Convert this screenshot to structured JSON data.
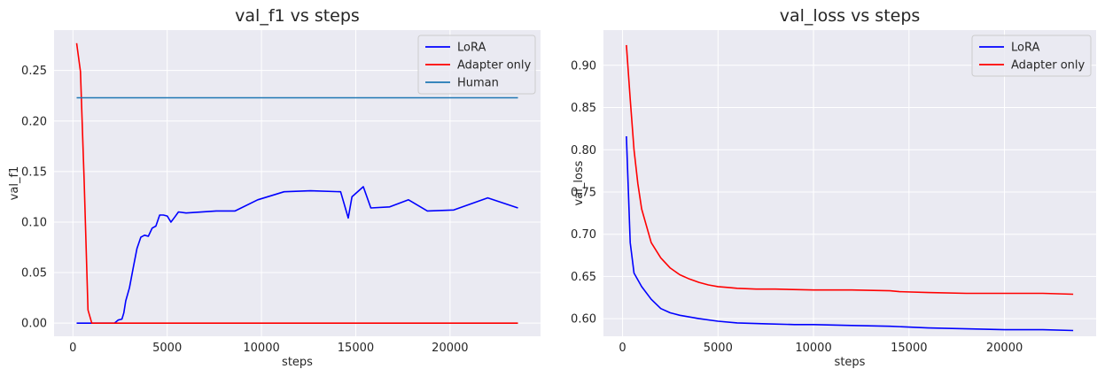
{
  "chart_data": [
    {
      "type": "line",
      "title": "val_f1 vs steps",
      "xlabel": "steps",
      "ylabel": "val_f1",
      "xlim": [
        -1000,
        24800
      ],
      "ylim": [
        -0.013,
        0.29
      ],
      "xticks": [
        0,
        5000,
        10000,
        15000,
        20000
      ],
      "yticks": [
        0.0,
        0.05,
        0.1,
        0.15,
        0.2,
        0.25
      ],
      "ytick_labels": [
        "0.00",
        "0.05",
        "0.10",
        "0.15",
        "0.20",
        "0.25"
      ],
      "grid": true,
      "legend_position": "top-right",
      "series": [
        {
          "name": "LoRA",
          "color": "#0000ff",
          "x": [
            200,
            2200,
            2400,
            2600,
            2700,
            2800,
            3000,
            3200,
            3400,
            3600,
            3800,
            4000,
            4200,
            4400,
            4600,
            4800,
            5000,
            5200,
            5400,
            5600,
            6000,
            7600,
            8600,
            9800,
            11200,
            12600,
            14200,
            14600,
            14800,
            15400,
            15800,
            16800,
            17800,
            18800,
            20200,
            22000,
            23600
          ],
          "y": [
            0.0,
            0.0,
            0.003,
            0.004,
            0.01,
            0.022,
            0.035,
            0.055,
            0.074,
            0.085,
            0.087,
            0.086,
            0.094,
            0.096,
            0.107,
            0.107,
            0.106,
            0.1,
            0.105,
            0.11,
            0.109,
            0.111,
            0.111,
            0.122,
            0.13,
            0.131,
            0.13,
            0.104,
            0.125,
            0.135,
            0.114,
            0.115,
            0.122,
            0.111,
            0.112,
            0.124,
            0.114
          ]
        },
        {
          "name": "Adapter only",
          "color": "#ff0000",
          "x": [
            200,
            400,
            600,
            800,
            1000,
            2000,
            5000,
            10000,
            15000,
            20000,
            23600
          ],
          "y": [
            0.277,
            0.249,
            0.14,
            0.013,
            0.0,
            0.0,
            0.0,
            0.0,
            0.0,
            0.0,
            0.0
          ]
        },
        {
          "name": "Human",
          "color": "#1f77b4",
          "x": [
            200,
            23600
          ],
          "y": [
            0.223,
            0.223
          ]
        }
      ]
    },
    {
      "type": "line",
      "title": "val_loss vs steps",
      "xlabel": "steps",
      "ylabel": "val_loss",
      "xlim": [
        -1000,
        24800
      ],
      "ylim": [
        0.5792,
        0.9417
      ],
      "xticks": [
        0,
        5000,
        10000,
        15000,
        20000
      ],
      "yticks": [
        0.6,
        0.65,
        0.7,
        0.75,
        0.8,
        0.85,
        0.9
      ],
      "ytick_labels": [
        "0.60",
        "0.65",
        "0.70",
        "0.75",
        "0.80",
        "0.85",
        "0.90"
      ],
      "grid": true,
      "legend_position": "top-right",
      "series": [
        {
          "name": "LoRA",
          "color": "#0000ff",
          "x": [
            200,
            400,
            600,
            1000,
            1500,
            2000,
            2500,
            3000,
            3500,
            4000,
            5000,
            6000,
            7500,
            9000,
            10000,
            12000,
            14000,
            16000,
            18000,
            20000,
            22000,
            23600
          ],
          "y": [
            0.816,
            0.69,
            0.654,
            0.638,
            0.623,
            0.612,
            0.607,
            0.604,
            0.602,
            0.6,
            0.597,
            0.595,
            0.594,
            0.593,
            0.593,
            0.592,
            0.591,
            0.589,
            0.588,
            0.587,
            0.587,
            0.586
          ]
        },
        {
          "name": "Adapter only",
          "color": "#ff0000",
          "x": [
            200,
            400,
            600,
            800,
            1000,
            1500,
            2000,
            2500,
            3000,
            3500,
            4000,
            4500,
            5000,
            5500,
            6000,
            7000,
            8000,
            10000,
            12000,
            14000,
            14500,
            16000,
            18000,
            20000,
            22000,
            23600
          ],
          "y": [
            0.924,
            0.86,
            0.8,
            0.76,
            0.73,
            0.69,
            0.672,
            0.66,
            0.652,
            0.647,
            0.643,
            0.64,
            0.638,
            0.637,
            0.636,
            0.635,
            0.635,
            0.634,
            0.634,
            0.633,
            0.632,
            0.631,
            0.63,
            0.63,
            0.63,
            0.629
          ]
        }
      ]
    }
  ]
}
